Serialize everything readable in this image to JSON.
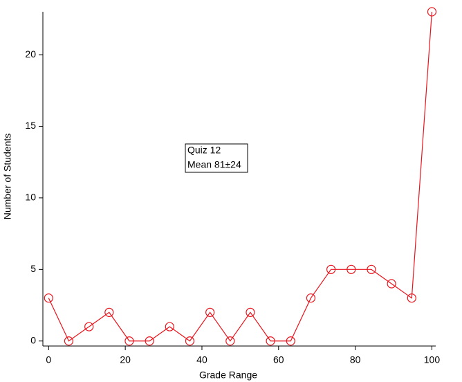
{
  "chart_data": {
    "type": "line",
    "x_label": "Grade Range",
    "y_label": "Number of Students",
    "annotation": [
      "Quiz 12",
      "Mean 81±24"
    ],
    "series": [
      {
        "color": "#e8141c",
        "x": [
          0,
          5.26,
          10.53,
          15.79,
          21.05,
          26.32,
          31.58,
          36.84,
          42.11,
          47.37,
          52.63,
          57.89,
          63.16,
          68.42,
          73.68,
          78.95,
          84.21,
          89.47,
          94.74,
          100
        ],
        "values": [
          3,
          0,
          1,
          2,
          0,
          0,
          1,
          0,
          2,
          0,
          2,
          0,
          0,
          3,
          5,
          5,
          5,
          4,
          3,
          23
        ]
      }
    ],
    "xlim": [
      -1.5,
      101
    ],
    "xticks": [
      0,
      20,
      40,
      60,
      80,
      100
    ],
    "ylim": [
      -0.35,
      23
    ],
    "yticks": [
      0,
      5,
      10,
      15,
      20
    ],
    "grid": false
  }
}
